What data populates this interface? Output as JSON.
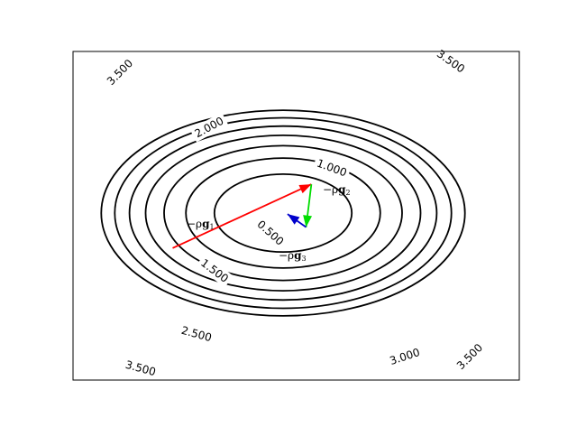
{
  "chart_data": {
    "type": "contour",
    "title": "",
    "xlabel": "",
    "ylabel": "",
    "grid": false,
    "levels": [
      0.5,
      1.0,
      1.5,
      2.0,
      2.5,
      3.0,
      3.5
    ],
    "contour_labels": [
      {
        "level": 0.5,
        "text": "0.500"
      },
      {
        "level": 1.0,
        "text": "1.000"
      },
      {
        "level": 1.5,
        "text": "1.500"
      },
      {
        "level": 2.0,
        "text": "2.000"
      },
      {
        "level": 2.5,
        "text": "2.500"
      },
      {
        "level": 3.0,
        "text": "3.000"
      },
      {
        "level": 3.5,
        "text": "3.500"
      },
      {
        "level": 3.5,
        "text": "3.500"
      },
      {
        "level": 3.5,
        "text": "3.500"
      },
      {
        "level": 3.5,
        "text": "3.500"
      }
    ],
    "arrows": [
      {
        "name": "−ρg₁",
        "color": "#ff0000",
        "from": [
          -1.25,
          -0.67
        ],
        "to": [
          0.32,
          0.55
        ]
      },
      {
        "name": "−ρg₂",
        "color": "#00dd00",
        "from": [
          0.32,
          0.55
        ],
        "to": [
          0.26,
          -0.27
        ]
      },
      {
        "name": "−ρg₃",
        "color": "#0000cc",
        "from": [
          0.26,
          -0.27
        ],
        "to": [
          0.05,
          -0.02
        ]
      }
    ],
    "arrow_labels": [
      {
        "prefix": "−ρ",
        "vec": "g",
        "sub": "1"
      },
      {
        "prefix": "−ρ",
        "vec": "g",
        "sub": "2"
      },
      {
        "prefix": "−ρ",
        "vec": "g",
        "sub": "3"
      }
    ]
  }
}
